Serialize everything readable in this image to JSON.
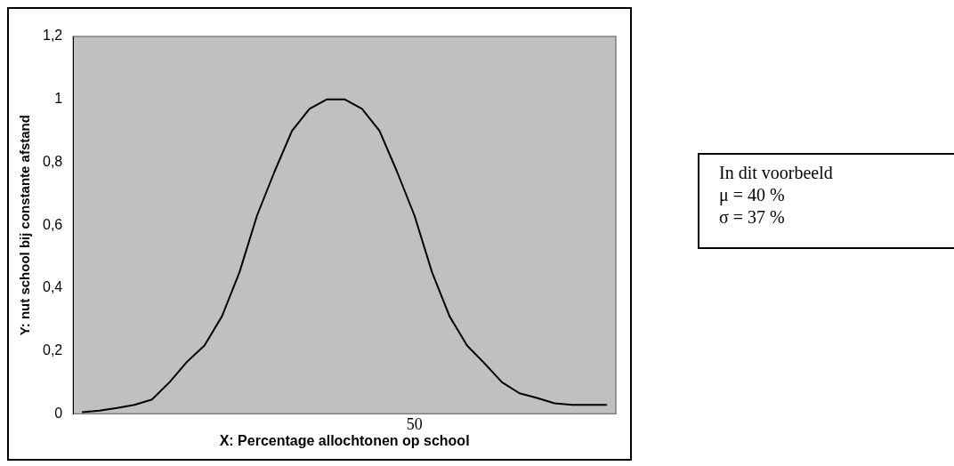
{
  "chart_data": {
    "type": "line",
    "xlabel": "X: Percentage allochtonen op school",
    "ylabel": "Y: nut school bij constante afstand",
    "categories": [
      null,
      null,
      null,
      null,
      null,
      null,
      null,
      null,
      null,
      null,
      null,
      null,
      null,
      null,
      null,
      null,
      null,
      null,
      null,
      "50",
      null,
      null,
      null,
      null,
      null,
      null,
      null,
      null,
      null,
      null,
      null
    ],
    "series": [
      {
        "color": "#000000",
        "values": [
          0.005,
          0.01,
          0.018,
          0.028,
          0.045,
          0.1,
          0.165,
          0.217,
          0.31,
          0.45,
          0.63,
          0.77,
          0.9,
          0.97,
          1,
          1,
          0.97,
          0.9,
          0.77,
          0.63,
          0.45,
          0.31,
          0.217,
          0.16,
          0.1,
          0.065,
          0.05,
          0.033,
          0.028,
          0.028,
          0.028
        ]
      }
    ],
    "ylim": [
      0,
      1.2
    ],
    "yticks": [
      0,
      {
        "value": 0.2,
        "label": "0,2"
      },
      {
        "value": 0.4,
        "label": "0,4"
      },
      {
        "value": 0.6,
        "label": "0,6"
      },
      {
        "value": 0.8,
        "label": "0,8"
      },
      1,
      {
        "value": 1.2,
        "label": "1,2"
      }
    ],
    "grid": false,
    "legend": false,
    "marker": "none",
    "line_style": "solid",
    "annotations": [
      "In dit voorbeeld",
      "μ = 40 %",
      "σ = 37 %"
    ]
  }
}
